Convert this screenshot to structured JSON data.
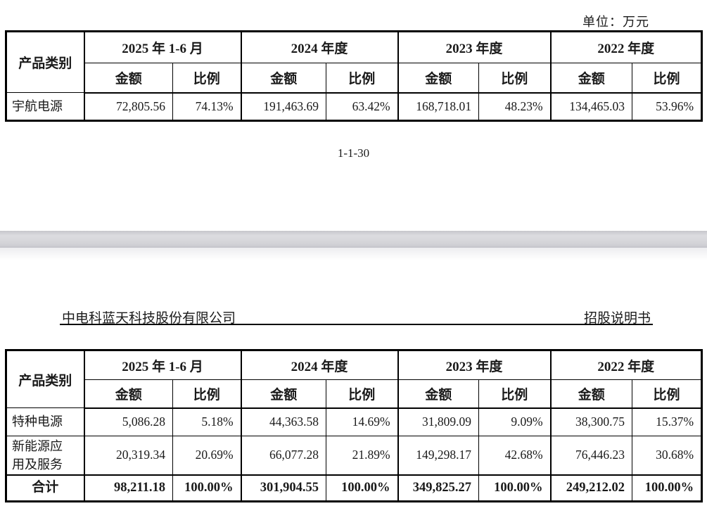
{
  "page1": {
    "unit_label": "单位：万元",
    "page_number": "1-1-30",
    "table": {
      "col_header": "产品类别",
      "year_groups": [
        "2025 年 1-6 月",
        "2024 年度",
        "2023 年度",
        "2022 年度"
      ],
      "sub_headers": [
        "金额",
        "比例"
      ],
      "rows": [
        {
          "label": "宇航电源",
          "bold": false,
          "values": [
            "72,805.56",
            "74.13%",
            "191,463.69",
            "63.42%",
            "168,718.01",
            "48.23%",
            "134,465.03",
            "53.96%"
          ]
        }
      ]
    }
  },
  "page2": {
    "company_name": "中电科蓝天科技股份有限公司",
    "doc_type": "招股说明书",
    "table": {
      "col_header": "产品类别",
      "year_groups": [
        "2025 年 1-6 月",
        "2024 年度",
        "2023 年度",
        "2022 年度"
      ],
      "sub_headers": [
        "金额",
        "比例"
      ],
      "rows": [
        {
          "label": "特种电源",
          "bold": false,
          "values": [
            "5,086.28",
            "5.18%",
            "44,363.58",
            "14.69%",
            "31,809.09",
            "9.09%",
            "38,300.75",
            "15.37%"
          ]
        },
        {
          "label": "新能源应\n用及服务",
          "bold": false,
          "values": [
            "20,319.34",
            "20.69%",
            "66,077.28",
            "21.89%",
            "149,298.17",
            "42.68%",
            "76,446.23",
            "30.68%"
          ]
        },
        {
          "label": "合计",
          "bold": true,
          "values": [
            "98,211.18",
            "100.00%",
            "301,904.55",
            "100.00%",
            "349,825.27",
            "100.00%",
            "249,212.02",
            "100.00%"
          ]
        }
      ]
    }
  }
}
